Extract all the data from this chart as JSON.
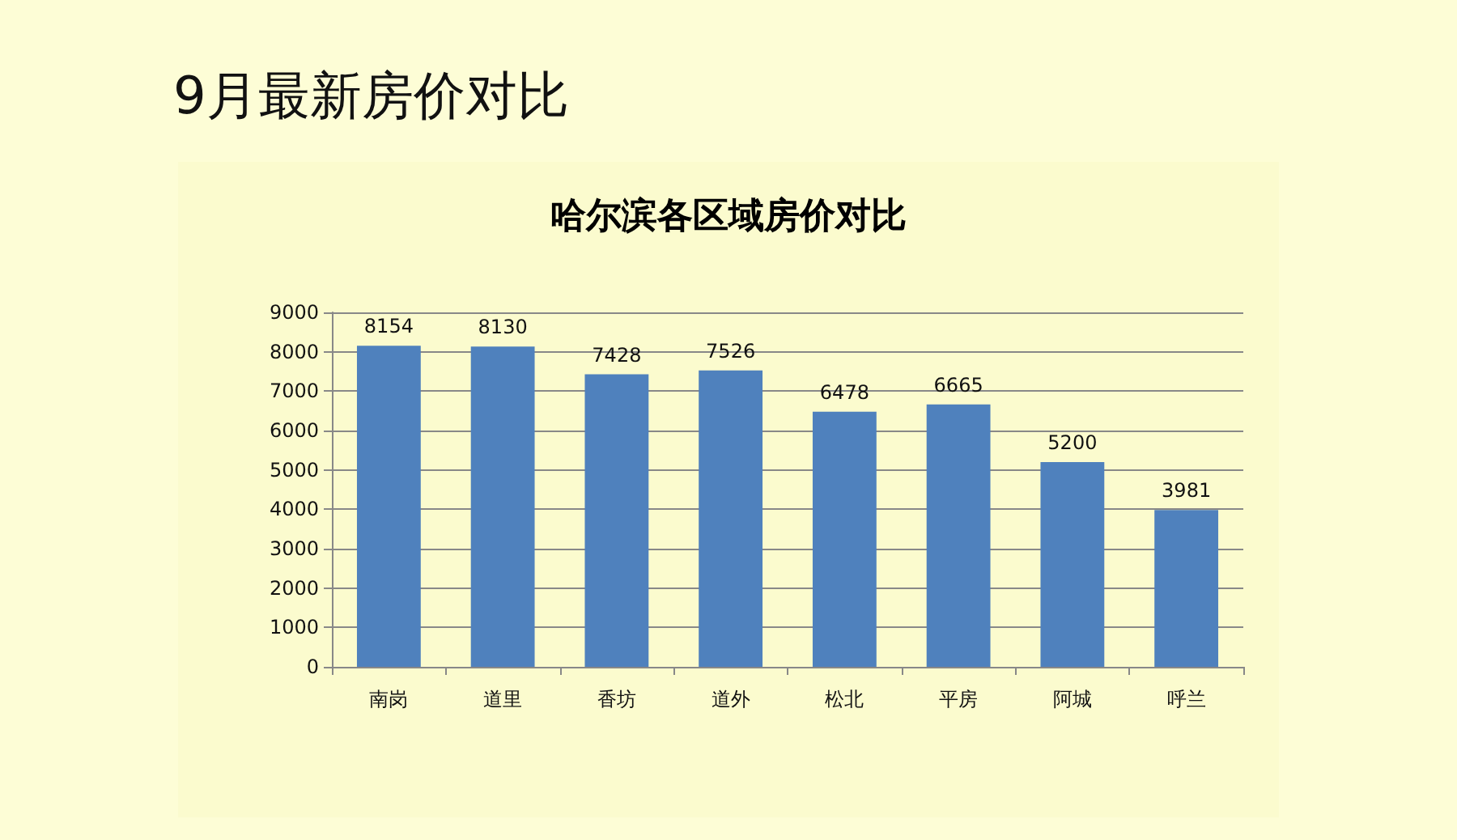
{
  "chart_data": {
    "type": "bar",
    "title": "9月最新房价对比",
    "subtitle": "哈尔滨各区域房价对比",
    "categories": [
      "南岗",
      "道里",
      "香坊",
      "道外",
      "松北",
      "平房",
      "阿城",
      "呼兰"
    ],
    "values": [
      8154,
      8130,
      7428,
      7526,
      6478,
      6665,
      5200,
      3981
    ],
    "color": "#4f81bd",
    "ylim": [
      0,
      9000
    ],
    "yticks": [
      0,
      1000,
      2000,
      3000,
      4000,
      5000,
      6000,
      7000,
      8000,
      9000
    ],
    "grid": "y",
    "data_labels": true
  }
}
